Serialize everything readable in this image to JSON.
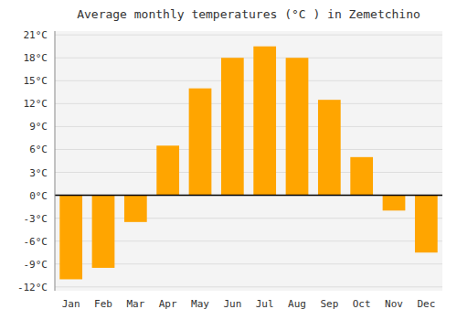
{
  "chart_data": {
    "type": "bar",
    "title": "Average monthly temperatures (°C ) in Zemetchino",
    "categories": [
      "Jan",
      "Feb",
      "Mar",
      "Apr",
      "May",
      "Jun",
      "Jul",
      "Aug",
      "Sep",
      "Oct",
      "Nov",
      "Dec"
    ],
    "values": [
      -11,
      -9.5,
      -3.5,
      6.5,
      14,
      18,
      19.5,
      18,
      12.5,
      5,
      -2,
      -7.5
    ],
    "color": "#FFA500",
    "ylim": [
      -12.5,
      21.5
    ],
    "yticks": [
      {
        "value": -12,
        "label": "-12°C"
      },
      {
        "value": -9,
        "label": "-9°C"
      },
      {
        "value": -6,
        "label": "-6°C"
      },
      {
        "value": -3,
        "label": "-3°C"
      },
      {
        "value": 0,
        "label": "0°C"
      },
      {
        "value": 3,
        "label": "3°C"
      },
      {
        "value": 6,
        "label": "6°C"
      },
      {
        "value": 9,
        "label": "9°C"
      },
      {
        "value": 12,
        "label": "12°C"
      },
      {
        "value": 15,
        "label": "15°C"
      },
      {
        "value": 18,
        "label": "18°C"
      },
      {
        "value": 21,
        "label": "21°C"
      }
    ],
    "grid": true
  }
}
